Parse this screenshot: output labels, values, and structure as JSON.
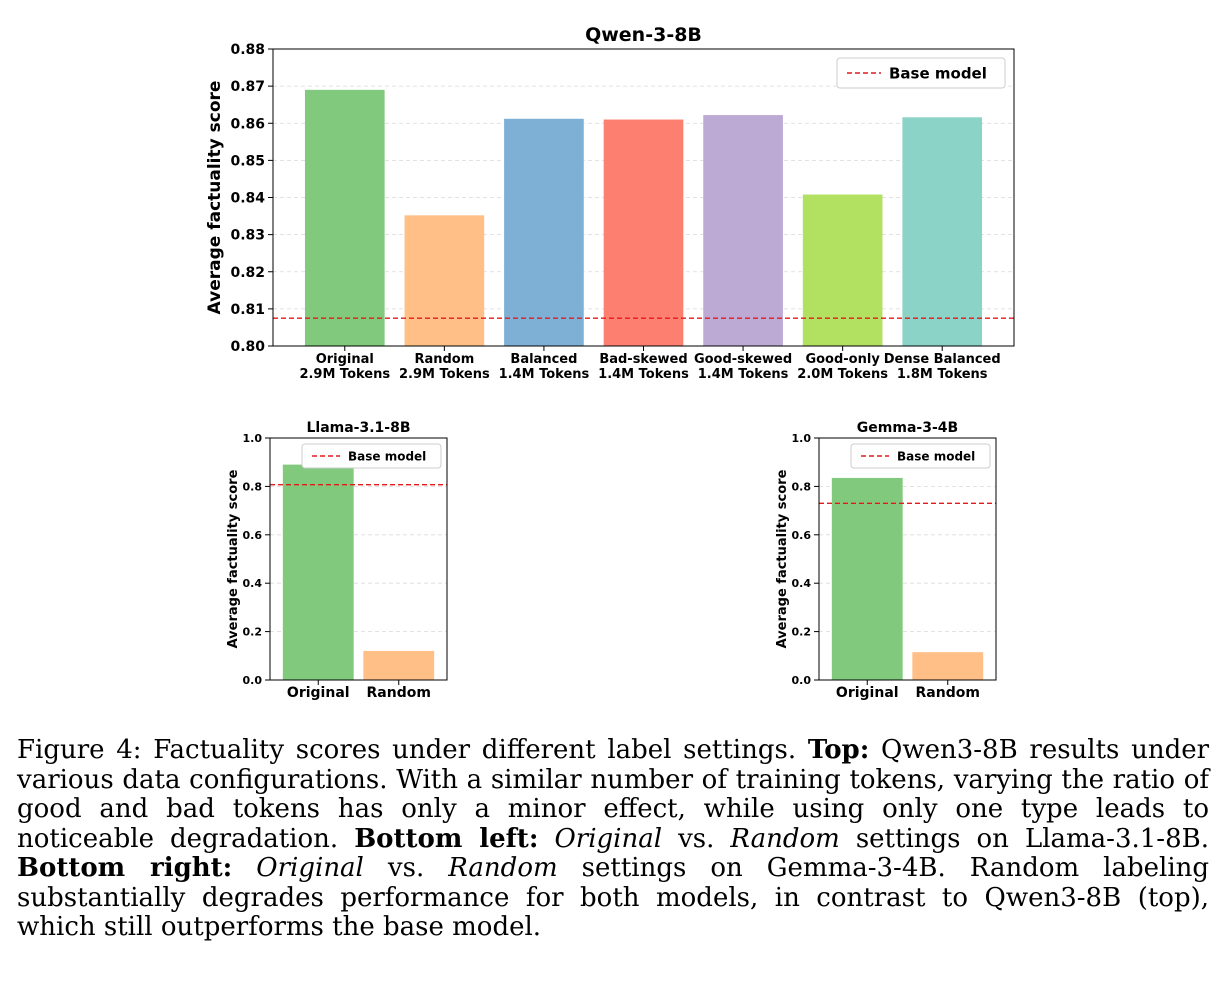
{
  "chart_data": [
    {
      "type": "bar",
      "title": "Qwen-3-8B",
      "xlabel": "",
      "ylabel": "Average factuality score",
      "ylim": [
        0.8,
        0.88
      ],
      "yticks": [
        "0.80",
        "0.81",
        "0.82",
        "0.83",
        "0.84",
        "0.85",
        "0.86",
        "0.87",
        "0.88"
      ],
      "categories": [
        [
          "Original",
          "2.9M Tokens"
        ],
        [
          "Random",
          "2.9M Tokens"
        ],
        [
          "Balanced",
          "1.4M Tokens"
        ],
        [
          "Bad-skewed",
          "1.4M Tokens"
        ],
        [
          "Good-skewed",
          "1.4M Tokens"
        ],
        [
          "Good-only",
          "2.0M Tokens"
        ],
        [
          "Dense Balanced",
          "1.8M Tokens"
        ]
      ],
      "values": [
        0.869,
        0.8352,
        0.8612,
        0.861,
        0.8622,
        0.8408,
        0.8616
      ],
      "colors": [
        "#80c97d",
        "#ffbf87",
        "#7eb0d5",
        "#fd7f6f",
        "#bcaad4",
        "#b2e061",
        "#8bd3c7"
      ],
      "baseline": {
        "label": "Base model",
        "value": 0.8075,
        "color": "#e31a1c"
      },
      "grid": "y",
      "legend": "top-right"
    },
    {
      "type": "bar",
      "title": "Llama-3.1-8B",
      "xlabel": "",
      "ylabel": "Average factuality score",
      "ylim": [
        0.0,
        1.0
      ],
      "yticks": [
        "0.0",
        "0.2",
        "0.4",
        "0.6",
        "0.8",
        "1.0"
      ],
      "categories": [
        [
          "Original"
        ],
        [
          "Random"
        ]
      ],
      "values": [
        0.89,
        0.12
      ],
      "colors": [
        "#80c97d",
        "#ffbf87"
      ],
      "baseline": {
        "label": "Base model",
        "value": 0.807,
        "color": "#e31a1c"
      },
      "grid": "y",
      "legend": "top-right"
    },
    {
      "type": "bar",
      "title": "Gemma-3-4B",
      "xlabel": "",
      "ylabel": "Average factuality score",
      "ylim": [
        0.0,
        1.0
      ],
      "yticks": [
        "0.0",
        "0.2",
        "0.4",
        "0.6",
        "0.8",
        "1.0"
      ],
      "categories": [
        [
          "Original"
        ],
        [
          "Random"
        ]
      ],
      "values": [
        0.835,
        0.115
      ],
      "colors": [
        "#80c97d",
        "#ffbf87"
      ],
      "baseline": {
        "label": "Base model",
        "value": 0.73,
        "color": "#e31a1c"
      },
      "grid": "y",
      "legend": "top-right"
    }
  ],
  "caption": {
    "figure_label": "Figure 4:",
    "intro": "Factuality scores under different label settings.",
    "top_label": "Top:",
    "top_text": "Qwen3-8B results under various data configurations. With a similar number of training tokens, varying the ratio of good and bad tokens has only a minor effect, while using only one type leads to noticeable degradation.",
    "bottom_left_label": "Bottom left:",
    "original_word_1": "Original",
    "vs_1": "vs.",
    "random_word_1": "Random",
    "bottom_left_text": "settings on Llama-3.1-8B.",
    "bottom_right_label": "Bottom right:",
    "original_word_2": "Original",
    "vs_2": "vs.",
    "random_word_2": "Random",
    "bottom_right_text": "settings on Gemma-3-4B. Random labeling substantially degrades performance for both models, in contrast to Qwen3-8B (top), which still outperforms the base model."
  }
}
